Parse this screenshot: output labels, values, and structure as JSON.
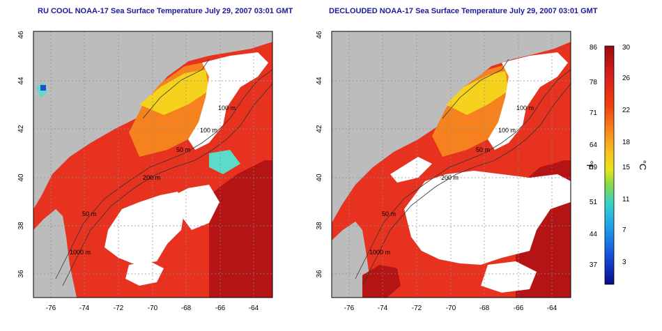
{
  "left_panel": {
    "title": "RU COOL NOAA-17 Sea Surface Temperature July 29, 2007 03:01 GMT",
    "lon_ticks": [
      "-76",
      "-74",
      "-72",
      "-70",
      "-68",
      "-66",
      "-64"
    ],
    "lat_ticks": [
      "46",
      "44",
      "42",
      "40",
      "38",
      "36"
    ],
    "contour_labels": [
      "100 m",
      "100 m",
      "50 m",
      "200 m",
      "50 m",
      "1000 m"
    ]
  },
  "right_panel": {
    "title": "DECLOUDED NOAA-17 Sea Surface Temperature July 29, 2007 03:01 GMT",
    "lon_ticks": [
      "-76",
      "-74",
      "-72",
      "-70",
      "-68",
      "-66",
      "-64"
    ],
    "lat_ticks": [
      "46",
      "44",
      "42",
      "40",
      "38",
      "36"
    ],
    "contour_labels": [
      "100 m",
      "100 m",
      "50 m",
      "200 m",
      "50 m",
      "1000 m"
    ]
  },
  "colorbar": {
    "f_ticks": [
      "86",
      "78",
      "71",
      "64",
      "59",
      "51",
      "44",
      "37"
    ],
    "c_ticks": [
      "30",
      "26",
      "22",
      "18",
      "15",
      "11",
      "7",
      "3"
    ],
    "f_label": "°F",
    "c_label": "°C",
    "colors": [
      "#9c0a0a",
      "#d81e1e",
      "#f0400e",
      "#fb8a1a",
      "#f5c320",
      "#e6e61c",
      "#8ad848",
      "#36d2c8",
      "#1ea0e8",
      "#1450dc",
      "#0a0a8c"
    ]
  },
  "map_colors": {
    "land": "#bcbcbc",
    "cloud": "#ffffff",
    "warm": "#e6321e",
    "hot": "#b41414",
    "orange": "#f5821e",
    "yellow": "#f5d21e",
    "cyan": "#5adcc8"
  }
}
